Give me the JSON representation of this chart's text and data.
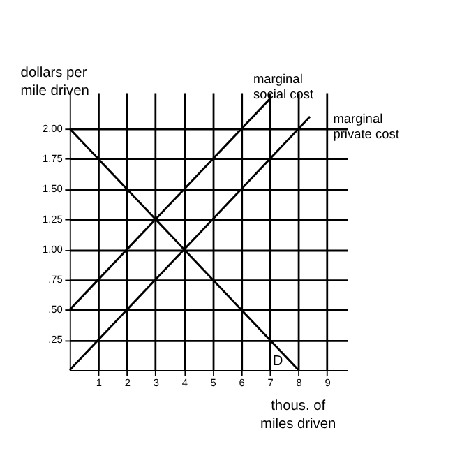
{
  "chart_data": {
    "type": "line",
    "xlabel": "thous. of miles driven",
    "ylabel": "dollars per mile driven",
    "xlim": [
      0,
      9.7
    ],
    "ylim": [
      0,
      2.3
    ],
    "xticks": [
      1,
      2,
      3,
      4,
      5,
      6,
      7,
      8,
      9
    ],
    "yticks": [
      {
        "value": 0.25,
        "label": ".25"
      },
      {
        "value": 0.5,
        "label": ".50"
      },
      {
        "value": 0.75,
        "label": ".75"
      },
      {
        "value": 1.0,
        "label": "1.00"
      },
      {
        "value": 1.25,
        "label": "1.25"
      },
      {
        "value": 1.5,
        "label": "1.50"
      },
      {
        "value": 1.75,
        "label": "1.75"
      },
      {
        "value": 2.0,
        "label": "2.00"
      }
    ],
    "grid": true,
    "marker": "none",
    "line_style": "solid",
    "series": [
      {
        "name": "D",
        "color": "#000000",
        "x": [
          0,
          8
        ],
        "values": [
          2.0,
          0
        ]
      },
      {
        "name": "marginal social cost",
        "color": "#000000",
        "x": [
          0,
          7.05
        ],
        "values": [
          0.5,
          2.26
        ]
      },
      {
        "name": "marginal private cost",
        "color": "#000000",
        "x": [
          0,
          8.4
        ],
        "values": [
          0,
          2.1
        ]
      }
    ]
  }
}
